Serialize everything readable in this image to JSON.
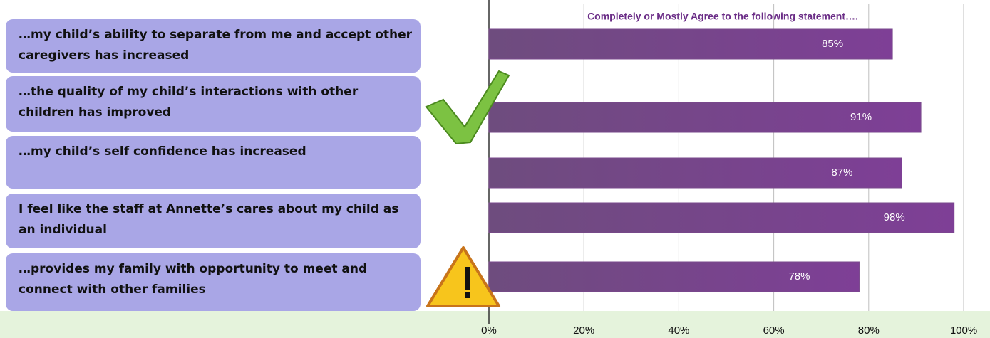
{
  "chart_data": {
    "type": "bar",
    "orientation": "horizontal",
    "title": "Completely or Mostly Agree to the following statement….",
    "categories": [
      "…my child’s ability to separate from me and accept other caregivers has increased",
      "…the quality of my child’s interactions with other children has improved",
      "…my child’s self confidence has increased",
      "I feel like the staff at Annette’s cares about my child as an individual",
      "…provides my family with opportunity to meet and connect with other families"
    ],
    "values": [
      85,
      91,
      87,
      98,
      78
    ],
    "value_labels": [
      "85%",
      "91%",
      "87%",
      "98%",
      "78%"
    ],
    "color": "#7a4a8c",
    "xlim": [
      0,
      100
    ],
    "xticks": [
      {
        "value": 0,
        "label": "0%"
      },
      {
        "value": 20,
        "label": "20%"
      },
      {
        "value": 40,
        "label": "40%"
      },
      {
        "value": 60,
        "label": "60%"
      },
      {
        "value": 80,
        "label": "80%"
      },
      {
        "value": 100,
        "label": "100%"
      }
    ],
    "grid": true
  }
}
